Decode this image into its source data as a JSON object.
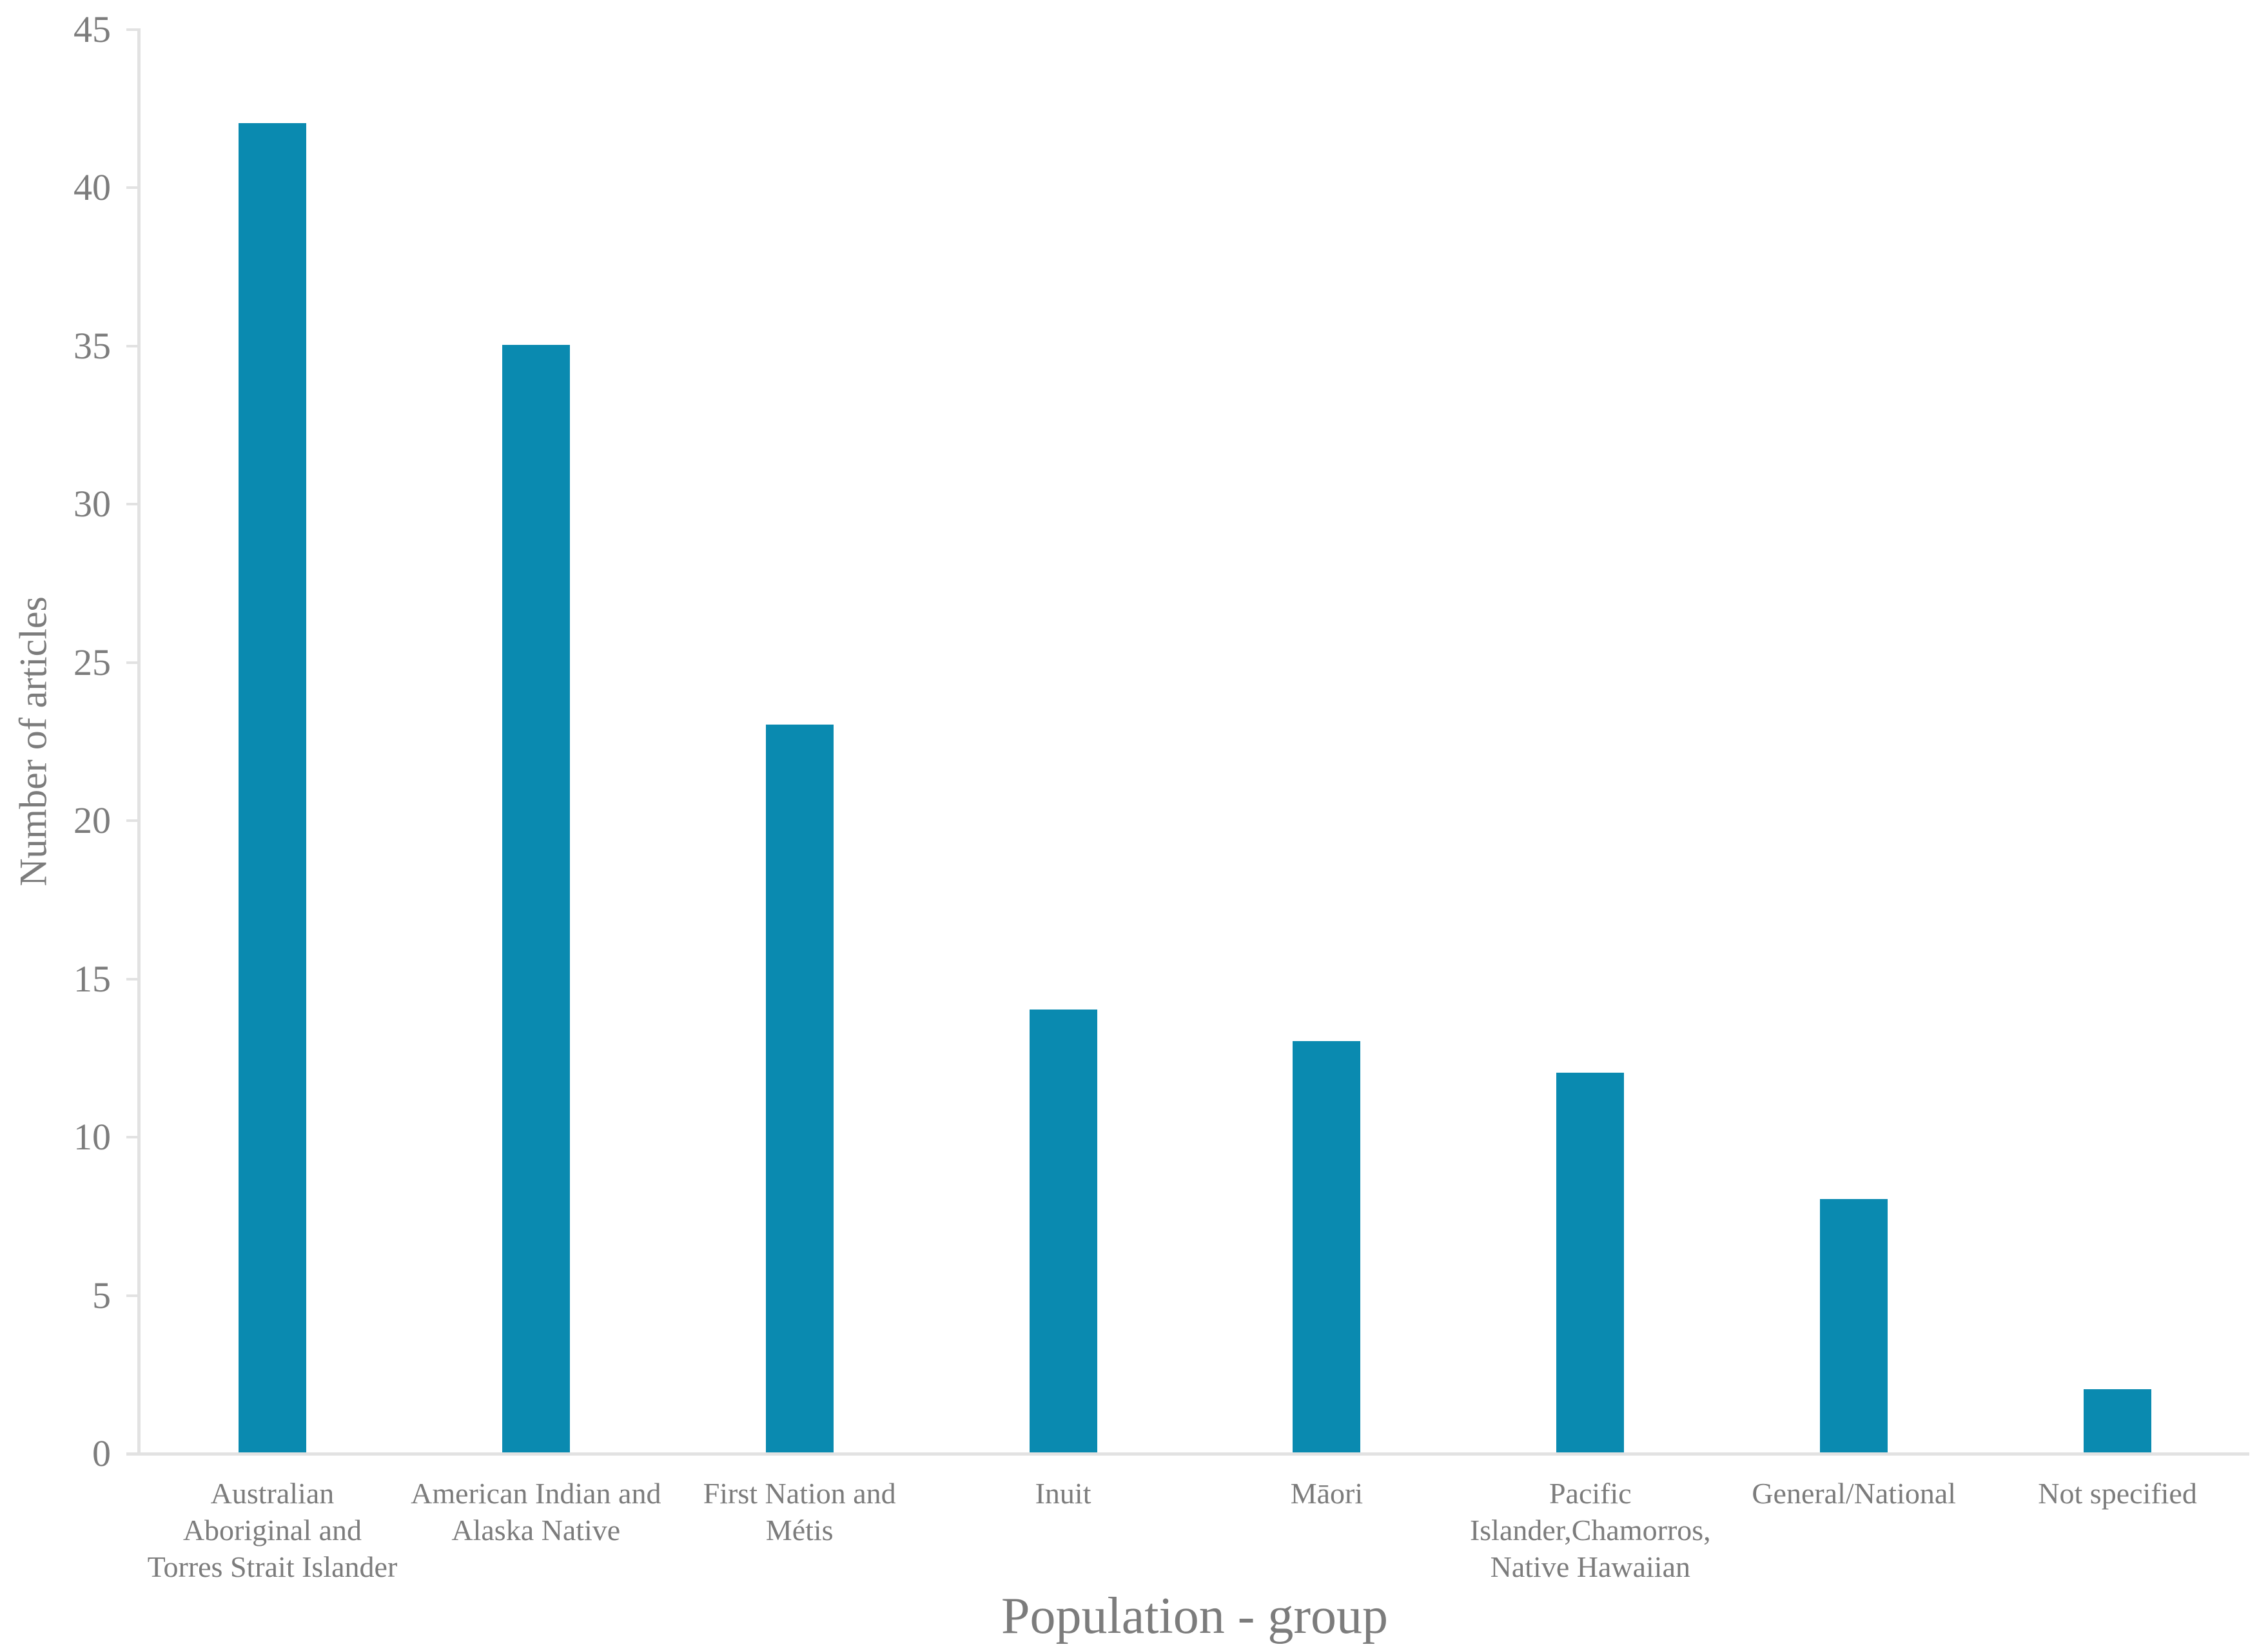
{
  "chart_data": {
    "type": "bar",
    "title": "",
    "xlabel": "Population - group",
    "ylabel": "Number of articles",
    "ylim": [
      0,
      45
    ],
    "ytick_step": 5,
    "yticks": [
      0,
      5,
      10,
      15,
      20,
      25,
      30,
      35,
      40,
      45
    ],
    "categories": [
      "Australian Aboriginal and Torres Strait Islander",
      "American Indian and Alaska Native",
      "First Nation and Métis",
      "Inuit",
      "Māori",
      "Pacific Islander,Chamorros, Native Hawaiian",
      "General/National",
      "Not specified"
    ],
    "category_lines": [
      [
        "Australian",
        "Aboriginal and",
        "Torres Strait Islander"
      ],
      [
        "American Indian and",
        "Alaska Native"
      ],
      [
        "First Nation and",
        "Métis"
      ],
      [
        "Inuit"
      ],
      [
        "Māori"
      ],
      [
        "Pacific",
        "Islander,Chamorros,",
        "Native Hawaiian"
      ],
      [
        "General/National"
      ],
      [
        "Not specified"
      ]
    ],
    "values": [
      42,
      35,
      23,
      14,
      13,
      12,
      8,
      2
    ],
    "bar_color": "#0A8AB0",
    "text_color": "#7C7C7C",
    "axis_color": "#E2E2E2",
    "grid": false,
    "legend_position": "none"
  }
}
